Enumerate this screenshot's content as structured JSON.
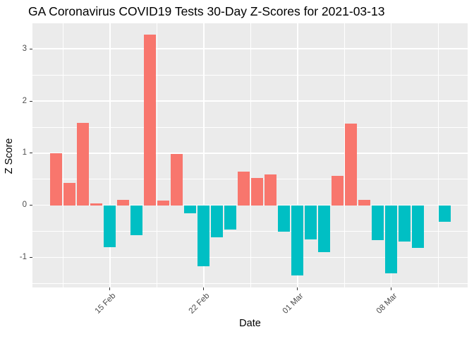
{
  "chart_data": {
    "type": "bar",
    "title": "GA Coronavirus COVID19 Tests 30-Day Z-Scores for 2021-03-13",
    "xlabel": "Date",
    "ylabel": "Z Score",
    "categories": [
      "11 Feb",
      "12 Feb",
      "13 Feb",
      "14 Feb",
      "15 Feb",
      "16 Feb",
      "17 Feb",
      "18 Feb",
      "19 Feb",
      "20 Feb",
      "21 Feb",
      "22 Feb",
      "23 Feb",
      "24 Feb",
      "25 Feb",
      "26 Feb",
      "27 Feb",
      "28 Feb",
      "01 Mar",
      "02 Mar",
      "03 Mar",
      "04 Mar",
      "05 Mar",
      "06 Mar",
      "07 Mar",
      "08 Mar",
      "09 Mar",
      "10 Mar",
      "11 Mar",
      "12 Mar"
    ],
    "values": [
      1.0,
      0.43,
      1.58,
      0.03,
      -0.81,
      0.11,
      -0.57,
      3.27,
      0.09,
      0.98,
      -0.16,
      -1.17,
      -0.62,
      -0.46,
      0.65,
      0.52,
      0.59,
      -0.5,
      -1.34,
      -0.65,
      -0.9,
      0.57,
      1.57,
      0.11,
      -0.67,
      -1.3,
      -0.69,
      -0.82,
      0,
      -0.31
    ],
    "positive_color": "#F8766D",
    "negative_color": "#00BFC4",
    "panel_bg": "#EBEBEB",
    "grid_color": "#FFFFFF",
    "axis_text_color": "#4D4D4D",
    "ylim": [
      -1.576,
      3.49
    ],
    "y_major_ticks": [
      -1,
      0,
      1,
      2,
      3
    ],
    "y_tick_labels": [
      "-1",
      "0",
      "1",
      "2",
      "3"
    ],
    "y_minor_ticks": [
      -1.5,
      -0.5,
      0.5,
      1.5,
      2.5
    ],
    "x_tick_labels": [
      "15 Feb",
      "22 Feb",
      "01 Mar",
      "08 Mar"
    ],
    "x_tick_day_indices": [
      4,
      11,
      18,
      25
    ],
    "x_minor_day_indices": [
      0.5,
      7.5,
      14.5,
      21.5,
      28.5
    ],
    "xlim_days": [
      -1.79,
      30.7
    ],
    "bar_width_days": 0.9,
    "grid": true,
    "legend": "none"
  }
}
